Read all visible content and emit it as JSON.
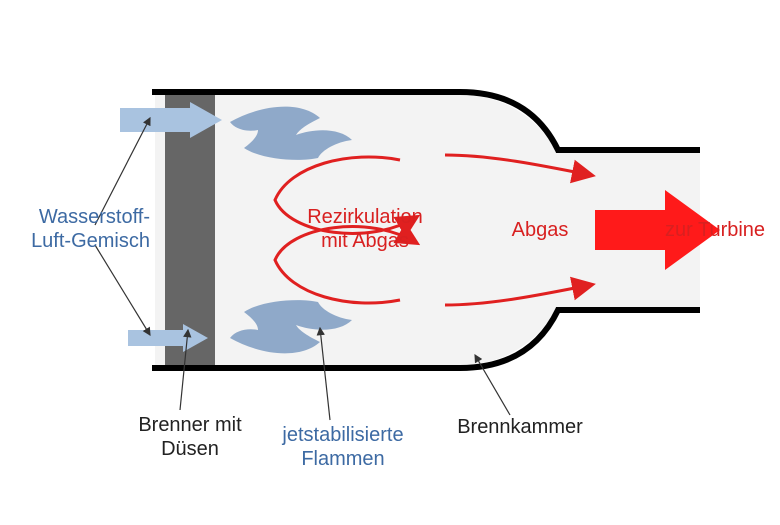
{
  "labels": {
    "inlet": {
      "text": "Wasserstoff-\nLuft-Gemisch",
      "color": "#3d6aa3"
    },
    "burner": {
      "text": "Brenner mit\nDüsen",
      "color": "#222222"
    },
    "flames": {
      "text": "jetstabilisierte\nFlammen",
      "color": "#3d6aa3"
    },
    "recirc": {
      "text": "Rezirkulation\nmit Abgas",
      "color": "#d82020"
    },
    "chamber": {
      "text": "Brennkammer",
      "color": "#222222"
    },
    "exhaust": {
      "text": "Abgas",
      "color": "#d82020"
    },
    "to_turbine": {
      "text": "zur Turbine",
      "color": "#d82020"
    }
  },
  "colors": {
    "wall": "#000000",
    "chamber_bg": "#f3f3f3",
    "burner": "#666666",
    "inlet_arrow": "#a9c3e0",
    "flame": "#8fa9c9",
    "flow_arrow": "#e02020",
    "big_arrow": "#ff1a1a",
    "leader": "#333333"
  },
  "geometry": {
    "wall_stroke": 6,
    "flow_stroke": 3,
    "leader_stroke": 1.2
  }
}
